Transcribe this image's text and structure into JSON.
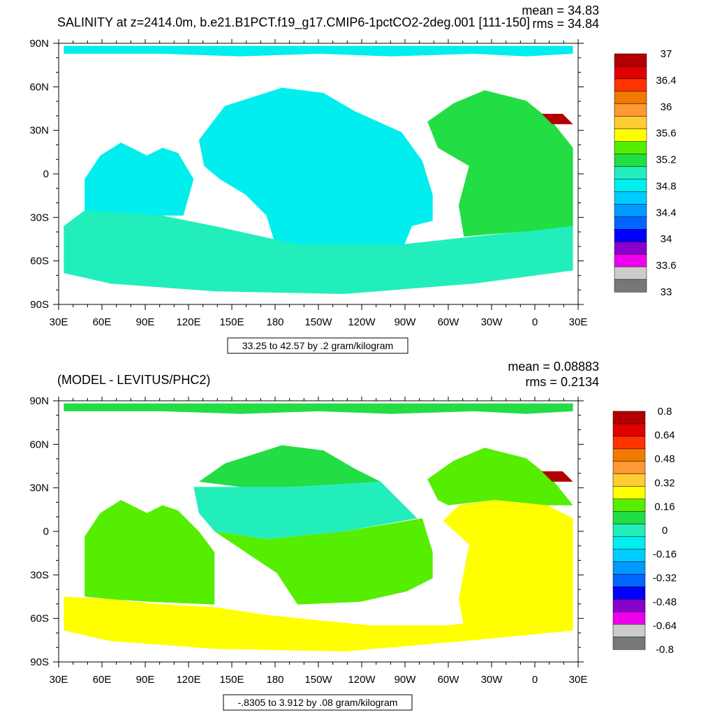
{
  "chart_data": [
    {
      "type": "heatmap",
      "title": "SALINITY at z=2414.0m, b.e21.B1PCT.f19_g17.CMIP6-1pctCO2-2deg.001 [111-150]",
      "stats": {
        "mean": "mean = 34.83",
        "rms": "rms = 34.84"
      },
      "x_ticks": [
        "30E",
        "60E",
        "90E",
        "120E",
        "150E",
        "180",
        "150W",
        "120W",
        "90W",
        "60W",
        "30W",
        "0",
        "30E"
      ],
      "y_ticks": [
        "90N",
        "60N",
        "30N",
        "0",
        "30S",
        "60S",
        "90S"
      ],
      "xlim": [
        "30E",
        "30E"
      ],
      "ylim": [
        "90S",
        "90N"
      ],
      "contour_info": "33.25 to 42.57 by .2 gram/kilogram",
      "colorbar": {
        "labels": [
          "37",
          "36.4",
          "36",
          "35.6",
          "35.2",
          "34.8",
          "34.4",
          "34",
          "33.6",
          "33"
        ],
        "colors": [
          "#b20000",
          "#e00000",
          "#ff3300",
          "#f07a00",
          "#ff9933",
          "#ffcc33",
          "#ffff00",
          "#55ee00",
          "#22dd44",
          "#22eebb",
          "#00eeee",
          "#00ccff",
          "#0099ff",
          "#0066ff",
          "#0000ff",
          "#8800cc",
          "#ee00ee",
          "#cccccc",
          "#777777"
        ]
      },
      "regions": [
        {
          "name": "arctic-ocean",
          "value": "34.8",
          "color": "#00eeee"
        },
        {
          "name": "pacific-ocean",
          "value": "34.8",
          "color": "#00eeee"
        },
        {
          "name": "indian-ocean",
          "value": "34.8",
          "color": "#00eeee"
        },
        {
          "name": "southern-ocean",
          "value": "34.8",
          "color": "#22eebb"
        },
        {
          "name": "atlantic-ocean",
          "value": "35.2",
          "color": "#22dd44"
        },
        {
          "name": "mediterranean-sea",
          "value": "37",
          "color": "#b20000"
        }
      ]
    },
    {
      "type": "heatmap",
      "title": "(MODEL - LEVITUS/PHC2)",
      "stats": {
        "mean": "mean = 0.08883",
        "rms": "rms = 0.2134"
      },
      "x_ticks": [
        "30E",
        "60E",
        "90E",
        "120E",
        "150E",
        "180",
        "150W",
        "120W",
        "90W",
        "60W",
        "30W",
        "0",
        "30E"
      ],
      "y_ticks": [
        "90N",
        "60N",
        "30N",
        "0",
        "30S",
        "60S",
        "90S"
      ],
      "xlim": [
        "30E",
        "30E"
      ],
      "ylim": [
        "90S",
        "90N"
      ],
      "contour_info": "-.8305 to 3.912 by .08 gram/kilogram",
      "colorbar": {
        "labels": [
          "0.8",
          "0.64",
          "0.48",
          "0.32",
          "0.16",
          "0",
          "-0.16",
          "-0.32",
          "-0.48",
          "-0.64",
          "-0.8"
        ],
        "colors": [
          "#b20000",
          "#e00000",
          "#ff3300",
          "#f07a00",
          "#ff9933",
          "#ffcc33",
          "#ffff00",
          "#55ee00",
          "#22dd44",
          "#22eebb",
          "#00eeee",
          "#00ccff",
          "#0099ff",
          "#0066ff",
          "#0000ff",
          "#8800cc",
          "#ee00ee",
          "#cccccc",
          "#777777"
        ]
      },
      "regions": [
        {
          "name": "arctic-ocean",
          "value": "0",
          "color": "#22dd44"
        },
        {
          "name": "north-pacific",
          "value": "0",
          "color": "#22dd44"
        },
        {
          "name": "tropical-pacific",
          "value": "-0.16",
          "color": "#22eebb"
        },
        {
          "name": "south-pacific",
          "value": "0",
          "color": "#55ee00"
        },
        {
          "name": "indian-ocean",
          "value": "0",
          "color": "#55ee00"
        },
        {
          "name": "southern-ocean-band",
          "value": "0.32",
          "color": "#ffff00"
        },
        {
          "name": "south-atlantic",
          "value": "0.16",
          "color": "#ffff00"
        },
        {
          "name": "north-atlantic",
          "value": "0",
          "color": "#55ee00"
        },
        {
          "name": "mediterranean-sea",
          "value": "0.8",
          "color": "#b20000"
        }
      ]
    }
  ]
}
